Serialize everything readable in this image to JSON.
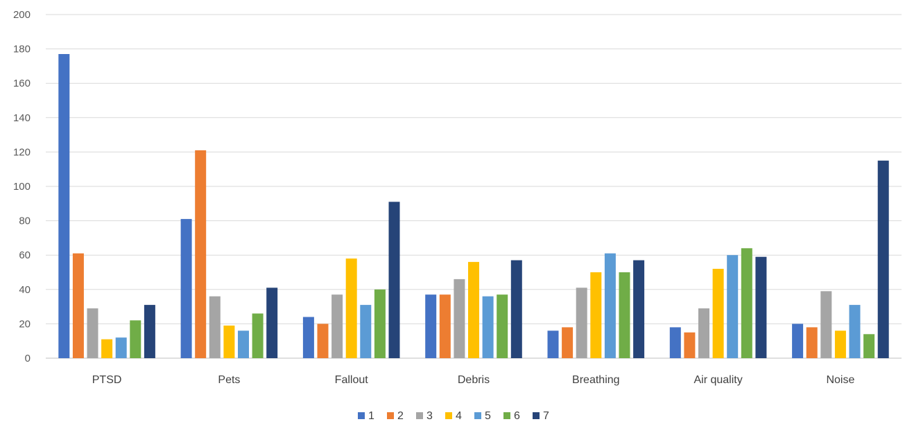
{
  "chart_data": {
    "type": "bar",
    "categories": [
      "PTSD",
      "Pets",
      "Fallout",
      "Debris",
      "Breathing",
      "Air quality",
      "Noise"
    ],
    "series": [
      {
        "name": "1",
        "color": "#4472C4",
        "values": [
          177,
          81,
          24,
          37,
          16,
          18,
          20
        ]
      },
      {
        "name": "2",
        "color": "#ED7D31",
        "values": [
          61,
          121,
          20,
          37,
          18,
          15,
          18
        ]
      },
      {
        "name": "3",
        "color": "#A5A5A5",
        "values": [
          29,
          36,
          37,
          46,
          41,
          29,
          39
        ]
      },
      {
        "name": "4",
        "color": "#FFC000",
        "values": [
          11,
          19,
          58,
          56,
          50,
          52,
          16
        ]
      },
      {
        "name": "5",
        "color": "#5B9BD5",
        "values": [
          12,
          16,
          31,
          36,
          61,
          60,
          31
        ]
      },
      {
        "name": "6",
        "color": "#70AD47",
        "values": [
          22,
          26,
          40,
          37,
          50,
          64,
          14
        ]
      },
      {
        "name": "7",
        "color": "#264478",
        "values": [
          31,
          41,
          91,
          57,
          57,
          59,
          115
        ]
      }
    ],
    "ylim": [
      0,
      200
    ],
    "yticks": [
      0,
      20,
      40,
      60,
      80,
      100,
      120,
      140,
      160,
      180,
      200
    ],
    "grid": true,
    "legend_position": "bottom",
    "title": "",
    "xlabel": "",
    "ylabel": ""
  }
}
